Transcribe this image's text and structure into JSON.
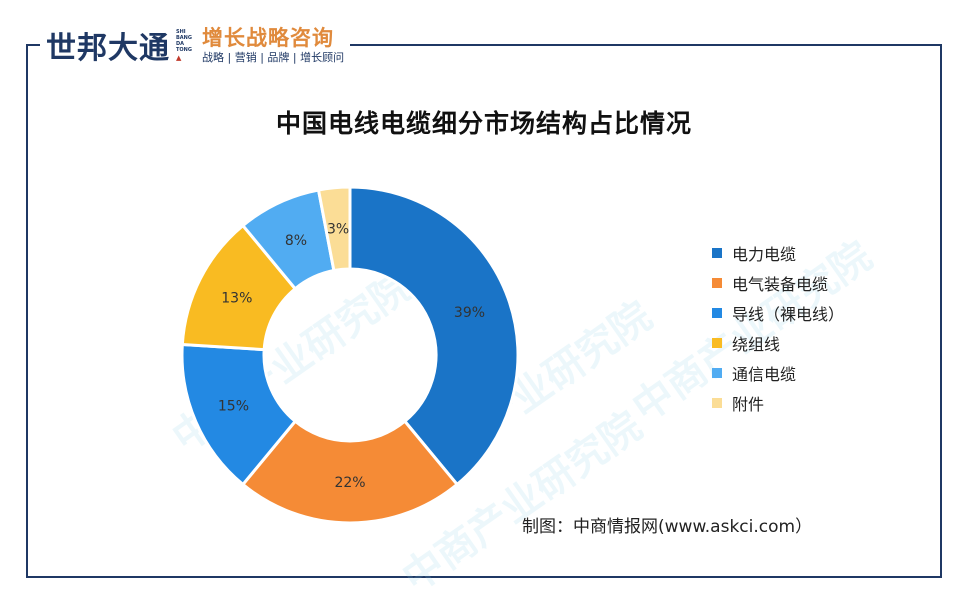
{
  "header": {
    "brand": "世邦大通",
    "brand_en": [
      "SHI",
      "BANG",
      "DA",
      "TONG"
    ],
    "tagline": "增长战略咨询",
    "subline": "战略 | 营销 | 品牌 | 增长顾问"
  },
  "chart_data": {
    "type": "pie",
    "title": "中国电线电缆细分市场结构占比情况",
    "categories": [
      "电力电缆",
      "电气装备电缆",
      "导线（裸电线）",
      "绕组线",
      "通信电缆",
      "附件"
    ],
    "values": [
      39,
      22,
      15,
      13,
      8,
      3
    ],
    "labels": [
      "39%",
      "22%",
      "15%",
      "13%",
      "8%",
      "3%"
    ],
    "colors": [
      "#1a74c7",
      "#f58b36",
      "#2389e3",
      "#f9bb22",
      "#51acf2",
      "#fbdd96"
    ],
    "legend_position": "right"
  },
  "watermark": "中商产业研究院",
  "source": "制图：中商情报网(www.askci.com）"
}
